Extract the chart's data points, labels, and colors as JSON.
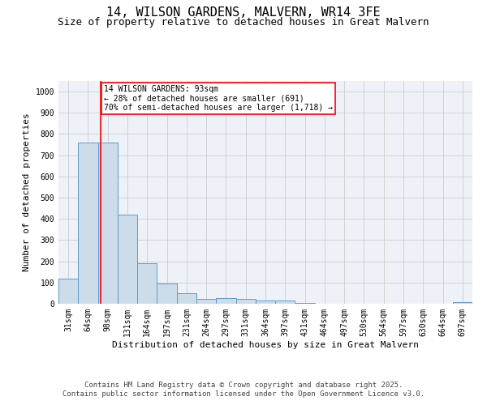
{
  "title_line1": "14, WILSON GARDENS, MALVERN, WR14 3FE",
  "title_line2": "Size of property relative to detached houses in Great Malvern",
  "xlabel": "Distribution of detached houses by size in Great Malvern",
  "ylabel": "Number of detached properties",
  "bar_color": "#ccdce8",
  "bar_edge_color": "#5b9bd5",
  "bin_labels": [
    "31sqm",
    "64sqm",
    "98sqm",
    "131sqm",
    "164sqm",
    "197sqm",
    "231sqm",
    "264sqm",
    "297sqm",
    "331sqm",
    "364sqm",
    "397sqm",
    "431sqm",
    "464sqm",
    "497sqm",
    "530sqm",
    "564sqm",
    "597sqm",
    "630sqm",
    "664sqm",
    "697sqm"
  ],
  "bar_values": [
    120,
    760,
    760,
    420,
    190,
    97,
    50,
    22,
    25,
    22,
    15,
    15,
    5,
    1,
    1,
    0,
    0,
    0,
    0,
    0,
    8
  ],
  "ylim": [
    0,
    1050
  ],
  "yticks": [
    0,
    100,
    200,
    300,
    400,
    500,
    600,
    700,
    800,
    900,
    1000
  ],
  "red_line_x": 1.65,
  "annotation_text": "14 WILSON GARDENS: 93sqm\n← 28% of detached houses are smaller (691)\n70% of semi-detached houses are larger (1,718) →",
  "grid_color": "#cccccc",
  "background_color": "#eef2f8",
  "footer_line1": "Contains HM Land Registry data © Crown copyright and database right 2025.",
  "footer_line2": "Contains public sector information licensed under the Open Government Licence v3.0.",
  "title_fontsize": 11,
  "subtitle_fontsize": 9,
  "annotation_fontsize": 7,
  "footer_fontsize": 6.5,
  "axis_label_fontsize": 8,
  "tick_fontsize": 7
}
